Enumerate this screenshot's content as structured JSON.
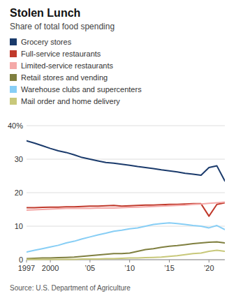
{
  "chart_data": {
    "type": "line",
    "title": "Stolen Lunch",
    "subtitle": "Share of total food spending",
    "annotations": [
      "Source: U.S. Department of Agriculture"
    ],
    "x": [
      1997,
      1998,
      1999,
      2000,
      2001,
      2002,
      2003,
      2004,
      2005,
      2006,
      2007,
      2008,
      2009,
      2010,
      2011,
      2012,
      2013,
      2014,
      2015,
      2016,
      2017,
      2018,
      2019,
      2020,
      2021,
      2022
    ],
    "series": [
      {
        "name": "Grocery stores",
        "color": "#1a3a6b",
        "values": [
          35.5,
          34.8,
          34.0,
          33.2,
          32.5,
          32.0,
          31.3,
          30.5,
          30.0,
          29.5,
          29.0,
          28.8,
          28.5,
          28.2,
          27.8,
          27.5,
          27.2,
          26.8,
          26.5,
          26.2,
          25.8,
          25.5,
          25.2,
          27.5,
          28.0,
          23.5
        ]
      },
      {
        "name": "Full-service restaurants",
        "color": "#c0392b",
        "values": [
          15.5,
          15.5,
          15.6,
          15.7,
          15.7,
          15.8,
          15.8,
          15.9,
          16.0,
          16.0,
          16.1,
          16.2,
          16.0,
          16.1,
          16.2,
          16.3,
          16.3,
          16.4,
          16.5,
          16.5,
          16.6,
          16.7,
          16.7,
          13.0,
          16.5,
          17.0
        ]
      },
      {
        "name": "Limited-service restaurants",
        "color": "#f4a9a8",
        "values": [
          14.8,
          14.9,
          15.0,
          15.1,
          15.2,
          15.3,
          15.3,
          15.3,
          15.3,
          15.4,
          15.4,
          15.4,
          15.5,
          15.6,
          15.7,
          15.8,
          15.9,
          16.0,
          16.1,
          16.2,
          16.3,
          16.5,
          16.6,
          16.8,
          17.0,
          17.2
        ]
      },
      {
        "name": "Retail stores and vending",
        "color": "#7f7f3f",
        "values": [
          0.3,
          0.4,
          0.5,
          0.5,
          0.6,
          0.7,
          0.8,
          1.0,
          1.2,
          1.4,
          1.6,
          1.8,
          1.8,
          2.0,
          2.5,
          3.0,
          3.3,
          3.7,
          4.0,
          4.2,
          4.5,
          4.8,
          5.0,
          5.2,
          5.3,
          5.0
        ]
      },
      {
        "name": "Warehouse clubs and supercenters",
        "color": "#87cef5",
        "values": [
          2.3,
          2.8,
          3.3,
          3.8,
          4.3,
          5.0,
          5.5,
          6.2,
          6.8,
          7.4,
          7.9,
          8.5,
          8.8,
          9.2,
          9.5,
          10.0,
          10.5,
          10.8,
          11.0,
          10.8,
          10.5,
          10.2,
          10.0,
          9.5,
          10.2,
          9.0
        ]
      },
      {
        "name": "Mail order and home delivery",
        "color": "#c8c87a",
        "values": [
          0.1,
          0.1,
          0.1,
          0.1,
          0.1,
          0.1,
          0.1,
          0.2,
          0.2,
          0.2,
          0.3,
          0.3,
          0.4,
          0.5,
          0.5,
          0.6,
          0.7,
          0.8,
          1.0,
          1.2,
          1.5,
          1.8,
          2.0,
          2.5,
          2.8,
          2.5
        ]
      }
    ],
    "xlim": [
      1997,
      2022
    ],
    "xticks": [
      1997,
      2000,
      {
        "value": 2005,
        "label": "’05"
      },
      {
        "value": 2010,
        "label": "’10"
      },
      {
        "value": 2015,
        "label": "’15"
      },
      {
        "value": 2020,
        "label": "’20"
      }
    ],
    "ylim": [
      0,
      40
    ],
    "yticks": [
      0,
      10,
      20,
      30,
      {
        "value": 40,
        "label": "40%"
      }
    ],
    "grid": true,
    "legend": "top"
  }
}
